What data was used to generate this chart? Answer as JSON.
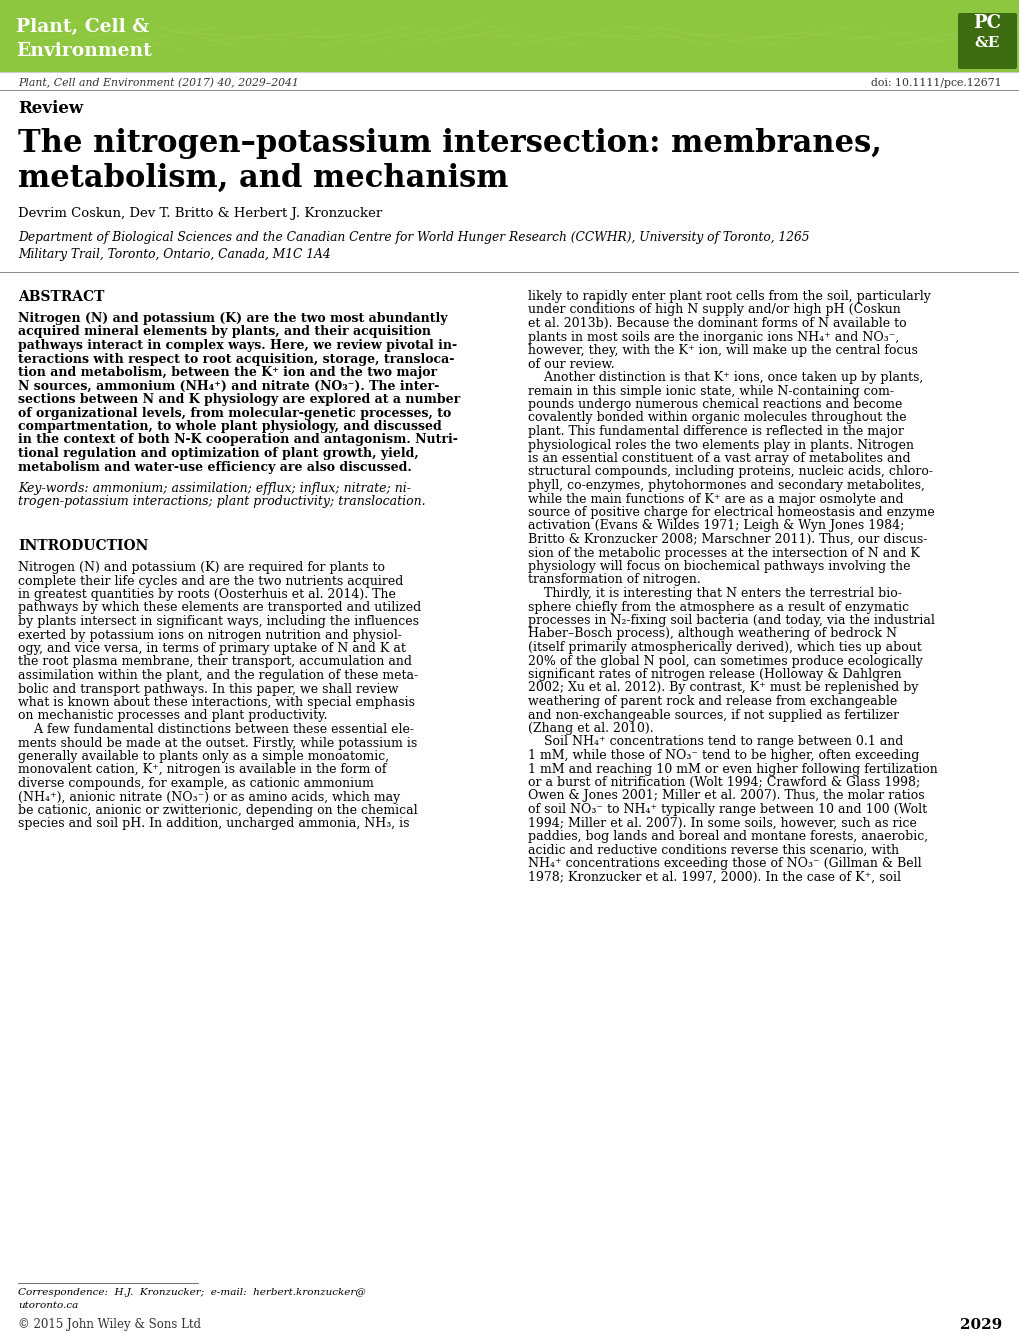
{
  "header_bg_color": "#8dc63f",
  "journal_line": "Plant, Cell and Environment (2017) 40, 2029–2041",
  "doi_line": "doi: 10.1111/pce.12671",
  "section_label": "Review",
  "article_title_line1": "The nitrogen–potassium intersection: membranes,",
  "article_title_line2": "metabolism, and mechanism",
  "authors": "Devrim Coskun, Dev T. Britto & Herbert J. Kronzucker",
  "affil_line1": "Department of Biological Sciences and the Canadian Centre for World Hunger Research (CCWHR), University of Toronto, 1265",
  "affil_line2": "Military Trail, Toronto, Ontario, Canada, M1C 1A4",
  "abstract_heading": "ABSTRACT",
  "abstract_lines": [
    "Nitrogen (N) and potassium (K) are the two most abundantly",
    "acquired mineral elements by plants, and their acquisition",
    "pathways interact in complex ways. Here, we review pivotal in-",
    "teractions with respect to root acquisition, storage, transloca-",
    "tion and metabolism, between the K⁺ ion and the two major",
    "N sources, ammonium (NH₄⁺) and nitrate (NO₃⁻). The inter-",
    "sections between N and K physiology are explored at a number",
    "of organizational levels, from molecular-genetic processes, to",
    "compartmentation, to whole plant physiology, and discussed",
    "in the context of both N-K cooperation and antagonism. Nutri-",
    "tional regulation and optimization of plant growth, yield,",
    "metabolism and water-use efficiency are also discussed."
  ],
  "keywords_lines": [
    "Key-words: ammonium; assimilation; efflux; influx; nitrate; ni-",
    "trogen-potassium interactions; plant productivity; translocation."
  ],
  "right_col_lines": [
    "likely to rapidly enter plant root cells from the soil, particularly",
    "under conditions of high N supply and/or high pH (Coskun",
    "et al. 2013b). Because the dominant forms of N available to",
    "plants in most soils are the inorganic ions NH₄⁺ and NO₃⁻,",
    "however, they, with the K⁺ ion, will make up the central focus",
    "of our review.",
    "    Another distinction is that K⁺ ions, once taken up by plants,",
    "remain in this simple ionic state, while N-containing com-",
    "pounds undergo numerous chemical reactions and become",
    "covalently bonded within organic molecules throughout the",
    "plant. This fundamental difference is reflected in the major",
    "physiological roles the two elements play in plants. Nitrogen",
    "is an essential constituent of a vast array of metabolites and",
    "structural compounds, including proteins, nucleic acids, chloro-",
    "phyll, co-enzymes, phytohormones and secondary metabolites,",
    "while the main functions of K⁺ are as a major osmolyte and",
    "source of positive charge for electrical homeostasis and enzyme",
    "activation (Evans & Wildes 1971; Leigh & Wyn Jones 1984;",
    "Britto & Kronzucker 2008; Marschner 2011). Thus, our discus-",
    "sion of the metabolic processes at the intersection of N and K",
    "physiology will focus on biochemical pathways involving the",
    "transformation of nitrogen.",
    "    Thirdly, it is interesting that N enters the terrestrial bio-",
    "sphere chiefly from the atmosphere as a result of enzymatic",
    "processes in N₂-fixing soil bacteria (and today, via the industrial",
    "Haber–Bosch process), although weathering of bedrock N",
    "(itself primarily atmospherically derived), which ties up about",
    "20% of the global N pool, can sometimes produce ecologically",
    "significant rates of nitrogen release (Holloway & Dahlgren",
    "2002; Xu et al. 2012). By contrast, K⁺ must be replenished by",
    "weathering of parent rock and release from exchangeable",
    "and non-exchangeable sources, if not supplied as fertilizer",
    "(Zhang et al. 2010).",
    "    Soil NH₄⁺ concentrations tend to range between 0.1 and",
    "1 mM, while those of NO₃⁻ tend to be higher, often exceeding",
    "1 mM and reaching 10 mM or even higher following fertilization",
    "or a burst of nitrification (Wolt 1994; Crawford & Glass 1998;",
    "Owen & Jones 2001; Miller et al. 2007). Thus, the molar ratios",
    "of soil NO₃⁻ to NH₄⁺ typically range between 10 and 100 (Wolt",
    "1994; Miller et al. 2007). In some soils, however, such as rice",
    "paddies, bog lands and boreal and montane forests, anaerobic,",
    "acidic and reductive conditions reverse this scenario, with",
    "NH₄⁺ concentrations exceeding those of NO₃⁻ (Gillman & Bell",
    "1978; Kronzucker et al. 1997, 2000). In the case of K⁺, soil"
  ],
  "intro_heading": "INTRODUCTION",
  "intro_left_lines": [
    "Nitrogen (N) and potassium (K) are required for plants to",
    "complete their life cycles and are the two nutrients acquired",
    "in greatest quantities by roots (Oosterhuis et al. 2014). The",
    "pathways by which these elements are transported and utilized",
    "by plants intersect in significant ways, including the influences",
    "exerted by potassium ions on nitrogen nutrition and physiol-",
    "ogy, and vice versa, in terms of primary uptake of N and K at",
    "the root plasma membrane, their transport, accumulation and",
    "assimilation within the plant, and the regulation of these meta-",
    "bolic and transport pathways. In this paper, we shall review",
    "what is known about these interactions, with special emphasis",
    "on mechanistic processes and plant productivity.",
    "    A few fundamental distinctions between these essential ele-",
    "ments should be made at the outset. Firstly, while potassium is",
    "generally available to plants only as a simple monoatomic,",
    "monovalent cation, K⁺, nitrogen is available in the form of",
    "diverse compounds, for example, as cationic ammonium",
    "(NH₄⁺), anionic nitrate (NO₃⁻) or as amino acids, which may",
    "be cationic, anionic or zwitterionic, depending on the chemical",
    "species and soil pH. In addition, uncharged ammonia, NH₃, is"
  ],
  "correspondence_line1": "Correspondence:  H.J.  Kronzucker;  e-mail:  herbert.kronzucker@",
  "correspondence_line2": "utoronto.ca",
  "copyright": "© 2015 John Wiley & Sons Ltd",
  "page_number": "2029",
  "bg_color": "#ffffff"
}
